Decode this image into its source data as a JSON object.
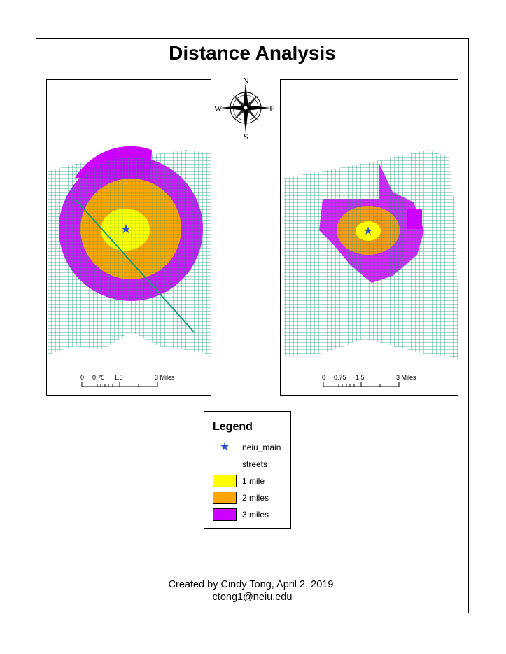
{
  "map": {
    "title": "Distance Analysis",
    "compass": {
      "north": "N",
      "south": "S",
      "east": "E",
      "west": "W"
    },
    "scalebar": {
      "ticks": [
        "0",
        "0.75",
        "1.5",
        "3 Miles"
      ]
    },
    "legend": {
      "title": "Legend",
      "items": [
        {
          "label": "neiu_main",
          "symbol": "star-icon",
          "color": "#2a4fd6"
        },
        {
          "label": "streets",
          "symbol": "line",
          "color": "#1a9a7a"
        },
        {
          "label": "1 mile",
          "symbol": "fill",
          "color": "#ffff00"
        },
        {
          "label": "2 miles",
          "symbol": "fill",
          "color": "#ffa500"
        },
        {
          "label": "3 miles",
          "symbol": "fill",
          "color": "#cc00ff"
        }
      ]
    },
    "credit": {
      "line1": "Created by Cindy Tong, April 2, 2019.",
      "line2": "ctong1@neiu.edu"
    },
    "colors": {
      "streets": "#1a9a7a",
      "buffer_1_mile": "#ffff00",
      "buffer_2_miles": "#ffa500",
      "buffer_3_miles": "#cc00ff",
      "star": "#2a4fd6"
    }
  }
}
